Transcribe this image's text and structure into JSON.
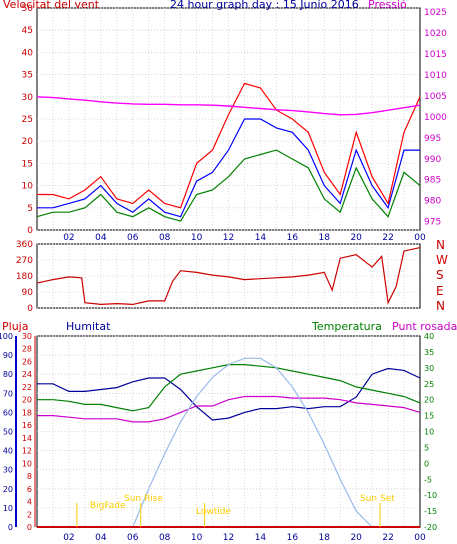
{
  "header": {
    "wind_label": "Velocitat del vent",
    "title": "24 hour graph day : 15 Junio 2016",
    "pressure_label": "Pressió"
  },
  "lower_header": {
    "rain_label": "Pluja",
    "humidity_label": "Humitat",
    "temperature_label": "Temperatura",
    "dewpoint_label": "Punt rosada"
  },
  "direction_letters": [
    "N",
    "W",
    "S",
    "E",
    "N"
  ],
  "sun_labels": {
    "bigfade": "BigFade",
    "sunrise": "Sun Rise",
    "lowtide": "Lowtide",
    "sunset": "Sun Set"
  },
  "colors": {
    "wind": "#ff0000",
    "wind_avg": "#0000ff",
    "gust_low": "#008000",
    "pressure": "#ff00ff",
    "direction": "#cc0000",
    "rain": "#cc0000",
    "humidity": "#000099",
    "temperature": "#008000",
    "dewpoint": "#cc00cc",
    "solar": "#99bbee",
    "annotation": "#ffcc00"
  },
  "chart_data": [
    {
      "type": "line",
      "name": "wind",
      "title": "24 hour graph day : 15 Junio 2016",
      "x_tick_labels": [
        "02",
        "04",
        "06",
        "08",
        "10",
        "12",
        "14",
        "16",
        "18",
        "20",
        "22",
        "00"
      ],
      "y_left_ticks": [
        0,
        5,
        10,
        15,
        20,
        25,
        30,
        35,
        40,
        45,
        50
      ],
      "y_right_ticks": [
        975,
        980,
        985,
        990,
        995,
        1000,
        1005,
        1010,
        1015,
        1020,
        1025
      ],
      "ylim_left": [
        0,
        50
      ],
      "ylim_right": [
        973,
        1026
      ],
      "x_hours": [
        0,
        1,
        2,
        3,
        4,
        5,
        6,
        7,
        8,
        9,
        10,
        11,
        12,
        13,
        14,
        15,
        16,
        17,
        18,
        19,
        20,
        21,
        22,
        23,
        24
      ],
      "series": [
        {
          "name": "Velocitat del vent",
          "axis": "left",
          "values": [
            8,
            8,
            7,
            9,
            12,
            7,
            6,
            9,
            6,
            5,
            15,
            18,
            26,
            33,
            32,
            27,
            25,
            22,
            13,
            8,
            22,
            12,
            6,
            22,
            30
          ]
        },
        {
          "axis": "left",
          "values": [
            5,
            5,
            6,
            7,
            10,
            6,
            4,
            7,
            4,
            3,
            11,
            13,
            18,
            25,
            25,
            23,
            22,
            18,
            10,
            6,
            18,
            10,
            5,
            18,
            18
          ]
        },
        {
          "axis": "left",
          "values": [
            3,
            4,
            4,
            5,
            8,
            4,
            3,
            5,
            3,
            2,
            8,
            9,
            12,
            16,
            17,
            18,
            16,
            14,
            7,
            4,
            14,
            7,
            3,
            13,
            10
          ]
        },
        {
          "name": "Pressió",
          "axis": "right",
          "values": [
            1004.8,
            1004.6,
            1004.3,
            1004.0,
            1003.6,
            1003.3,
            1003.1,
            1003.0,
            1003.0,
            1002.9,
            1002.9,
            1002.8,
            1002.6,
            1002.3,
            1002.0,
            1001.7,
            1001.5,
            1001.2,
            1000.8,
            1000.5,
            1000.6,
            1001.0,
            1001.6,
            1002.2,
            1002.8
          ]
        }
      ]
    },
    {
      "type": "line",
      "name": "direction",
      "ylim": [
        0,
        360
      ],
      "y_ticks": [
        0,
        90,
        180,
        270,
        360
      ],
      "x_hours": [
        0,
        1,
        2,
        2.8,
        3,
        4,
        5,
        6,
        7,
        8,
        8.5,
        9,
        10,
        11,
        12,
        13,
        14,
        15,
        16,
        17,
        18,
        18.5,
        19,
        20,
        21,
        21.6,
        22,
        22.5,
        23,
        24
      ],
      "values": [
        140,
        160,
        175,
        170,
        30,
        20,
        25,
        20,
        40,
        40,
        150,
        210,
        200,
        185,
        175,
        160,
        165,
        170,
        175,
        185,
        200,
        100,
        280,
        300,
        230,
        290,
        30,
        120,
        320,
        340
      ]
    },
    {
      "type": "line",
      "name": "climate",
      "y_left_ticks": [
        0,
        10,
        20,
        30,
        40,
        50,
        60,
        70,
        80,
        90,
        100
      ],
      "y_rain_ticks": [
        0,
        2,
        4,
        6,
        8,
        10,
        12,
        14,
        16,
        18,
        20,
        22,
        24,
        26,
        28,
        30
      ],
      "y_right_ticks": [
        -20,
        -15,
        -10,
        -5,
        0,
        5,
        10,
        15,
        20,
        25,
        30,
        35,
        40
      ],
      "x_hours": [
        0,
        1,
        2,
        3,
        4,
        5,
        6,
        7,
        8,
        9,
        10,
        11,
        12,
        13,
        14,
        15,
        16,
        17,
        18,
        19,
        20,
        21,
        22,
        23,
        24
      ],
      "series": [
        {
          "name": "Humitat",
          "axis": "humidity",
          "values": [
            75,
            75,
            71,
            71,
            72,
            73,
            76,
            78,
            78,
            72,
            63,
            56,
            57,
            60,
            62,
            62,
            63,
            62,
            63,
            63,
            68,
            80,
            83,
            82,
            78
          ]
        },
        {
          "name": "Temperatura",
          "axis": "temperature",
          "values": [
            20,
            20,
            19.5,
            18.5,
            18.5,
            17.5,
            16.5,
            17.5,
            24,
            28,
            29,
            30,
            31,
            31,
            30.5,
            30,
            29,
            28,
            27,
            26,
            24,
            23,
            22,
            21,
            19
          ]
        },
        {
          "name": "Punt rosada",
          "axis": "temperature",
          "values": [
            15,
            15,
            14.5,
            14,
            14,
            14,
            13,
            13,
            14,
            16,
            18,
            18,
            20,
            21,
            21,
            21,
            20.5,
            20.5,
            20.5,
            20,
            19,
            18.5,
            18,
            17.5,
            16
          ]
        },
        {
          "axis": "temperature",
          "values": [
            null,
            null,
            null,
            null,
            null,
            null,
            -20,
            -8,
            3,
            13,
            21,
            27,
            31,
            33,
            33,
            30,
            24,
            16,
            6,
            -5,
            -15,
            -20,
            null,
            null,
            null
          ]
        },
        {
          "name": "Pluja",
          "axis": "rain",
          "values": [
            0,
            0,
            0,
            0,
            0,
            0,
            0,
            0,
            0,
            0,
            0,
            0,
            0,
            0,
            0,
            0,
            0,
            0,
            0,
            0,
            0,
            0,
            0,
            0,
            0
          ]
        }
      ],
      "annotations_hour": {
        "bigfade": 2.5,
        "sunrise": 6.5,
        "lowtide": 10.5,
        "sunset": 21.5
      }
    }
  ]
}
